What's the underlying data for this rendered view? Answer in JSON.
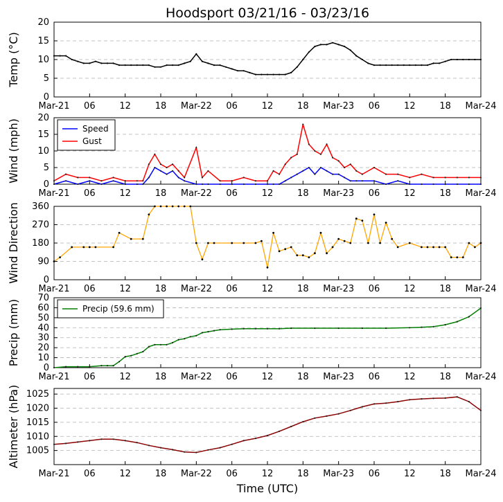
{
  "title": "Hoodsport 03/21/16 - 03/23/16",
  "xlabel": "Time (UTC)",
  "time_ticks": [
    "Mar-21",
    "06",
    "12",
    "18",
    "Mar-22",
    "06",
    "12",
    "18",
    "Mar-23",
    "06",
    "12",
    "18",
    "Mar-24"
  ],
  "x_range_hours": [
    0,
    72
  ],
  "colors": {
    "temp": "#000000",
    "speed": "#0000ff",
    "gust": "#ff0000",
    "direction": "#ffa500",
    "precip": "#008000",
    "altimeter": "#8b0000",
    "grid": "#b0b0b0"
  },
  "chart_data": [
    {
      "type": "line",
      "id": "temp",
      "ylabel": "Temp (°C)",
      "ylim": [
        0,
        20
      ],
      "yticks": [
        0,
        5,
        10,
        15,
        20
      ],
      "series": [
        {
          "name": "Temp",
          "x": [
            0,
            1,
            2,
            3,
            4,
            5,
            6,
            7,
            8,
            9,
            10,
            11,
            12,
            13,
            14,
            15,
            16,
            17,
            18,
            19,
            20,
            21,
            22,
            23,
            24,
            25,
            26,
            27,
            28,
            29,
            30,
            31,
            32,
            33,
            34,
            35,
            36,
            37,
            38,
            39,
            40,
            41,
            42,
            43,
            44,
            45,
            46,
            47,
            48,
            49,
            50,
            51,
            52,
            53,
            54,
            55,
            56,
            57,
            58,
            59,
            60,
            61,
            62,
            63,
            64,
            65,
            66,
            67,
            68,
            69,
            70,
            71,
            72
          ],
          "values": [
            11,
            11,
            11,
            10,
            9.5,
            9,
            9,
            9.5,
            9,
            9,
            9,
            8.5,
            8.5,
            8.5,
            8.5,
            8.5,
            8.5,
            8,
            8,
            8.5,
            8.5,
            8.5,
            9,
            9.5,
            11.5,
            9.5,
            9,
            8.5,
            8.5,
            8,
            7.5,
            7,
            7,
            6.5,
            6,
            6,
            6,
            6,
            6,
            6,
            6.5,
            8,
            10,
            12,
            13.5,
            14,
            14,
            14.5,
            14,
            13.5,
            12.5,
            11,
            10,
            9,
            8.5,
            8.5,
            8.5,
            8.5,
            8.5,
            8.5,
            8.5,
            8.5,
            8.5,
            8.5,
            9,
            9,
            9.5,
            10,
            10,
            10,
            10,
            10,
            10
          ]
        }
      ]
    },
    {
      "type": "line",
      "id": "wind",
      "ylabel": "Wind (mph)",
      "ylim": [
        0,
        20
      ],
      "yticks": [
        0,
        5,
        10,
        15,
        20
      ],
      "legend": "upper left",
      "series": [
        {
          "name": "Speed",
          "x": [
            0,
            2,
            4,
            6,
            8,
            10,
            12,
            14,
            15,
            16,
            17,
            18,
            19,
            20,
            21,
            22,
            24,
            25,
            26,
            28,
            30,
            32,
            34,
            36,
            37,
            38,
            39,
            40,
            41,
            42,
            43,
            44,
            45,
            46,
            47,
            48,
            49,
            50,
            51,
            52,
            54,
            56,
            58,
            60,
            62,
            64,
            66,
            68,
            70,
            72
          ],
          "values": [
            0,
            1,
            0,
            1,
            0,
            1,
            0,
            0,
            0,
            2,
            5,
            4,
            3,
            4,
            2,
            1,
            0,
            0,
            0,
            0,
            0,
            0,
            0,
            0,
            0,
            0,
            1,
            2,
            3,
            4,
            5,
            3,
            5,
            4,
            3,
            3,
            2,
            1,
            1,
            1,
            1,
            0,
            1,
            0,
            0,
            0,
            0,
            0,
            0,
            0
          ]
        },
        {
          "name": "Gust",
          "x": [
            0,
            2,
            4,
            6,
            8,
            10,
            12,
            14,
            15,
            16,
            17,
            18,
            19,
            20,
            21,
            22,
            24,
            25,
            26,
            28,
            30,
            32,
            34,
            36,
            37,
            38,
            39,
            40,
            41,
            42,
            43,
            44,
            45,
            46,
            47,
            48,
            49,
            50,
            51,
            52,
            54,
            56,
            58,
            60,
            62,
            64,
            66,
            68,
            70,
            72
          ],
          "values": [
            1,
            3,
            2,
            2,
            1,
            2,
            1,
            1,
            1,
            6,
            9,
            6,
            5,
            6,
            4,
            2,
            11,
            2,
            4,
            1,
            1,
            2,
            1,
            1,
            4,
            3,
            6,
            8,
            9,
            18,
            12,
            10,
            9,
            12,
            8,
            7,
            5,
            6,
            4,
            3,
            5,
            3,
            3,
            2,
            3,
            2,
            2,
            2,
            2,
            2
          ]
        }
      ]
    },
    {
      "type": "scatter",
      "id": "direction",
      "ylabel": "Wind Direction",
      "ylim": [
        0,
        360
      ],
      "yticks": [
        0,
        90,
        180,
        270,
        360
      ],
      "series": [
        {
          "name": "Direction",
          "x": [
            0,
            1,
            3,
            5,
            6,
            7,
            10,
            11,
            13,
            15,
            16,
            17,
            18,
            19,
            20,
            21,
            22,
            23,
            24,
            25,
            26,
            27,
            30,
            32,
            34,
            35,
            36,
            37,
            38,
            39,
            40,
            41,
            42,
            43,
            44,
            45,
            46,
            47,
            48,
            49,
            50,
            51,
            52,
            53,
            54,
            55,
            56,
            57,
            58,
            60,
            62,
            63,
            64,
            65,
            66,
            67,
            68,
            69,
            70,
            71,
            72
          ],
          "values": [
            90,
            110,
            160,
            160,
            160,
            160,
            160,
            230,
            200,
            200,
            320,
            360,
            360,
            360,
            360,
            360,
            360,
            360,
            180,
            100,
            180,
            180,
            180,
            180,
            180,
            190,
            60,
            230,
            140,
            150,
            160,
            120,
            120,
            110,
            130,
            230,
            130,
            160,
            200,
            190,
            180,
            300,
            290,
            180,
            320,
            180,
            280,
            200,
            160,
            180,
            160,
            160,
            160,
            160,
            160,
            110,
            110,
            110,
            180,
            160,
            180
          ]
        }
      ]
    },
    {
      "type": "line",
      "id": "precip",
      "ylabel": "Precip (mm)",
      "ylim": [
        0,
        70
      ],
      "yticks": [
        0,
        10,
        20,
        30,
        40,
        50,
        60,
        70
      ],
      "legend": "upper left",
      "series": [
        {
          "name": "Precip (59.6 mm)",
          "x": [
            0,
            2,
            4,
            6,
            8,
            9,
            10,
            11,
            12,
            13,
            14,
            15,
            16,
            17,
            18,
            19,
            20,
            21,
            22,
            23,
            24,
            25,
            26,
            27,
            28,
            30,
            32,
            34,
            36,
            38,
            40,
            44,
            48,
            52,
            56,
            60,
            62,
            64,
            66,
            68,
            70,
            72
          ],
          "values": [
            0,
            1,
            1,
            1,
            2,
            2,
            2,
            6,
            11,
            12,
            14,
            16,
            21,
            23,
            23,
            23,
            25,
            28,
            29,
            31,
            32,
            35,
            36,
            37,
            38,
            38.5,
            39,
            39,
            39,
            39,
            39.5,
            39.5,
            39.5,
            39.5,
            39.5,
            40,
            40.5,
            41,
            43,
            46,
            51,
            59.6
          ]
        }
      ]
    },
    {
      "type": "line",
      "id": "altimeter",
      "ylabel": "Altimeter (hPa)",
      "ylim": [
        1000,
        1027
      ],
      "yticks": [
        1005,
        1010,
        1015,
        1020,
        1025
      ],
      "series": [
        {
          "name": "Altimeter",
          "x": [
            0,
            2,
            4,
            6,
            8,
            10,
            12,
            14,
            16,
            18,
            20,
            22,
            24,
            26,
            28,
            30,
            32,
            34,
            36,
            38,
            40,
            42,
            44,
            46,
            48,
            50,
            52,
            54,
            56,
            58,
            60,
            62,
            64,
            66,
            68,
            70,
            72
          ],
          "values": [
            1007.2,
            1007.5,
            1008,
            1008.5,
            1009,
            1009,
            1008.5,
            1007.8,
            1006.8,
            1006,
            1005.3,
            1004.5,
            1004.3,
            1005.2,
            1006,
            1007.2,
            1008.5,
            1009.3,
            1010.3,
            1011.8,
            1013.5,
            1015.2,
            1016.5,
            1017.2,
            1018,
            1019.2,
            1020.5,
            1021.5,
            1021.8,
            1022.3,
            1023,
            1023.3,
            1023.5,
            1023.6,
            1024,
            1022.3,
            1019.2
          ]
        }
      ]
    }
  ]
}
